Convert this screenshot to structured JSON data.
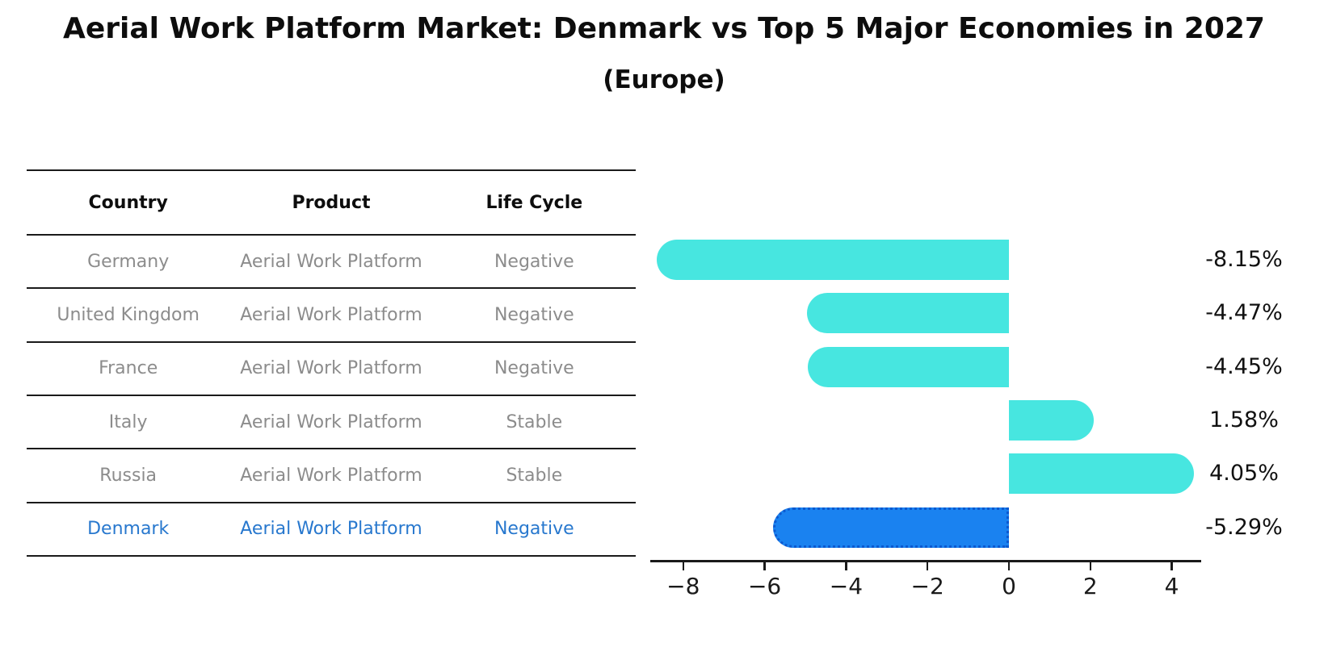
{
  "title": "Aerial Work Platform Market: Denmark vs Top 5 Major Economies in 2027",
  "subtitle": "(Europe)",
  "table": {
    "headers": [
      "Country",
      "Product",
      "Life Cycle"
    ],
    "rows": [
      {
        "country": "Germany",
        "product": "Aerial Work Platform",
        "life_cycle": "Negative",
        "highlight": false
      },
      {
        "country": "United Kingdom",
        "product": "Aerial Work Platform",
        "life_cycle": "Negative",
        "highlight": false
      },
      {
        "country": "France",
        "product": "Aerial Work Platform",
        "life_cycle": "Negative",
        "highlight": false
      },
      {
        "country": "Italy",
        "product": "Aerial Work Platform",
        "life_cycle": "Stable",
        "highlight": false
      },
      {
        "country": "Russia",
        "product": "Aerial Work Platform",
        "life_cycle": "Stable",
        "highlight": false
      },
      {
        "country": "Denmark",
        "product": "Aerial Work Platform",
        "life_cycle": "Negative",
        "highlight": true
      }
    ]
  },
  "chart_data": {
    "type": "bar",
    "orientation": "horizontal",
    "title": "Aerial Work Platform Market: Denmark vs Top 5 Major Economies in 2027",
    "subtitle": "(Europe)",
    "categories": [
      "Germany",
      "United Kingdom",
      "France",
      "Italy",
      "Russia",
      "Denmark"
    ],
    "values": [
      -8.15,
      -4.47,
      -4.45,
      1.58,
      4.05,
      -5.29
    ],
    "value_labels": [
      "-8.15%",
      "-4.47%",
      "-4.45%",
      "1.58%",
      "4.05%",
      "-5.29%"
    ],
    "unit": "%",
    "x_ticks": [
      -8,
      -6,
      -4,
      -2,
      0,
      2,
      4
    ],
    "x_tick_labels": [
      "−8",
      "−6",
      "−4",
      "−2",
      "0",
      "2",
      "4"
    ],
    "xlim": [
      -8.76,
      4.66
    ],
    "grid": false,
    "legend": "none",
    "highlight_category": "Denmark",
    "colors": {
      "bar": "#47e6e0",
      "highlight_bar": "#1a82f0",
      "highlight_border": "#0c59cf",
      "highlight_text": "#2878ce",
      "row_text": "#8c8c8c",
      "axis": "#1a1a1a"
    }
  }
}
